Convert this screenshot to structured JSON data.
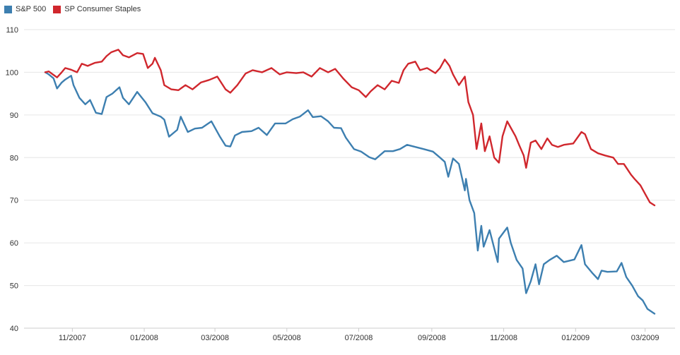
{
  "chart_data": {
    "type": "line",
    "title": "",
    "xlabel": "",
    "ylabel": "",
    "ylim": [
      40,
      110
    ],
    "yticks": [
      40,
      50,
      60,
      70,
      80,
      90,
      100,
      110
    ],
    "xticks": [
      "11/2007",
      "01/2008",
      "03/2008",
      "05/2008",
      "07/2008",
      "09/2008",
      "11/2008",
      "01/2009",
      "03/2009"
    ],
    "grid": "horizontal",
    "legend": "top-left",
    "x_start": "2007-10-09",
    "x_end": "2009-03-09",
    "series": [
      {
        "name": "S&P 500",
        "color": "#3d7fb0",
        "points": [
          [
            "2007-10-09",
            100
          ],
          [
            "2007-10-12",
            99.5
          ],
          [
            "2007-10-16",
            98.6
          ],
          [
            "2007-10-19",
            96.2
          ],
          [
            "2007-10-23",
            97.6
          ],
          [
            "2007-10-26",
            98.3
          ],
          [
            "2007-10-31",
            99.2
          ],
          [
            "2007-11-02",
            97.0
          ],
          [
            "2007-11-07",
            94.0
          ],
          [
            "2007-11-12",
            92.5
          ],
          [
            "2007-11-16",
            93.5
          ],
          [
            "2007-11-21",
            90.5
          ],
          [
            "2007-11-26",
            90.2
          ],
          [
            "2007-11-30",
            94.2
          ],
          [
            "2007-12-05",
            95.0
          ],
          [
            "2007-12-11",
            96.5
          ],
          [
            "2007-12-14",
            94.0
          ],
          [
            "2007-12-19",
            92.5
          ],
          [
            "2007-12-26",
            95.4
          ],
          [
            "2008-01-02",
            93.0
          ],
          [
            "2008-01-08",
            90.4
          ],
          [
            "2008-01-15",
            89.6
          ],
          [
            "2008-01-18",
            88.9
          ],
          [
            "2008-01-22",
            84.9
          ],
          [
            "2008-01-29",
            86.5
          ],
          [
            "2008-02-01",
            89.6
          ],
          [
            "2008-02-07",
            86.0
          ],
          [
            "2008-02-13",
            86.8
          ],
          [
            "2008-02-19",
            87.0
          ],
          [
            "2008-02-27",
            88.5
          ],
          [
            "2008-03-05",
            85.0
          ],
          [
            "2008-03-10",
            82.8
          ],
          [
            "2008-03-14",
            82.6
          ],
          [
            "2008-03-18",
            85.2
          ],
          [
            "2008-03-24",
            86.0
          ],
          [
            "2008-04-01",
            86.2
          ],
          [
            "2008-04-07",
            87.0
          ],
          [
            "2008-04-14",
            85.3
          ],
          [
            "2008-04-21",
            88.0
          ],
          [
            "2008-04-30",
            88.0
          ],
          [
            "2008-05-06",
            89.0
          ],
          [
            "2008-05-12",
            89.6
          ],
          [
            "2008-05-19",
            91.1
          ],
          [
            "2008-05-23",
            89.5
          ],
          [
            "2008-05-30",
            89.7
          ],
          [
            "2008-06-05",
            88.5
          ],
          [
            "2008-06-10",
            87.0
          ],
          [
            "2008-06-16",
            86.9
          ],
          [
            "2008-06-20",
            84.7
          ],
          [
            "2008-06-27",
            82.0
          ],
          [
            "2008-07-03",
            81.4
          ],
          [
            "2008-07-10",
            80.1
          ],
          [
            "2008-07-15",
            79.6
          ],
          [
            "2008-07-23",
            81.5
          ],
          [
            "2008-07-30",
            81.5
          ],
          [
            "2008-08-05",
            82.0
          ],
          [
            "2008-08-11",
            83.0
          ],
          [
            "2008-08-18",
            82.5
          ],
          [
            "2008-08-25",
            82.0
          ],
          [
            "2008-09-02",
            81.4
          ],
          [
            "2008-09-08",
            80.0
          ],
          [
            "2008-09-12",
            79.0
          ],
          [
            "2008-09-15",
            75.5
          ],
          [
            "2008-09-19",
            79.8
          ],
          [
            "2008-09-24",
            78.5
          ],
          [
            "2008-09-29",
            72.3
          ],
          [
            "2008-09-30",
            75.0
          ],
          [
            "2008-10-03",
            70.0
          ],
          [
            "2008-10-07",
            67.0
          ],
          [
            "2008-10-10",
            58.2
          ],
          [
            "2008-10-13",
            64.0
          ],
          [
            "2008-10-15",
            59.1
          ],
          [
            "2008-10-20",
            63.0
          ],
          [
            "2008-10-27",
            55.5
          ],
          [
            "2008-10-28",
            61.0
          ],
          [
            "2008-11-04",
            63.6
          ],
          [
            "2008-11-07",
            60.0
          ],
          [
            "2008-11-12",
            56.0
          ],
          [
            "2008-11-17",
            54.0
          ],
          [
            "2008-11-20",
            48.2
          ],
          [
            "2008-11-24",
            51.0
          ],
          [
            "2008-11-28",
            55.0
          ],
          [
            "2008-12-01",
            50.3
          ],
          [
            "2008-12-05",
            55.0
          ],
          [
            "2008-12-10",
            56.0
          ],
          [
            "2008-12-16",
            57.0
          ],
          [
            "2008-12-22",
            55.5
          ],
          [
            "2008-12-31",
            56.1
          ],
          [
            "2009-01-06",
            59.5
          ],
          [
            "2009-01-09",
            55.0
          ],
          [
            "2009-01-15",
            53.0
          ],
          [
            "2009-01-20",
            51.5
          ],
          [
            "2009-01-23",
            53.5
          ],
          [
            "2009-01-28",
            53.2
          ],
          [
            "2009-02-05",
            53.3
          ],
          [
            "2009-02-09",
            55.3
          ],
          [
            "2009-02-13",
            52.0
          ],
          [
            "2009-02-18",
            50.0
          ],
          [
            "2009-02-23",
            47.5
          ],
          [
            "2009-02-27",
            46.5
          ],
          [
            "2009-03-03",
            44.5
          ],
          [
            "2009-03-09",
            43.4
          ]
        ]
      },
      {
        "name": "SP Consumer Staples",
        "color": "#d0272d",
        "points": [
          [
            "2007-10-09",
            100
          ],
          [
            "2007-10-12",
            100.2
          ],
          [
            "2007-10-16",
            99.4
          ],
          [
            "2007-10-19",
            98.8
          ],
          [
            "2007-10-23",
            100.0
          ],
          [
            "2007-10-26",
            101.0
          ],
          [
            "2007-10-31",
            100.6
          ],
          [
            "2007-11-05",
            100.0
          ],
          [
            "2007-11-09",
            102.0
          ],
          [
            "2007-11-14",
            101.5
          ],
          [
            "2007-11-20",
            102.2
          ],
          [
            "2007-11-26",
            102.5
          ],
          [
            "2007-11-30",
            103.8
          ],
          [
            "2007-12-04",
            104.7
          ],
          [
            "2007-12-10",
            105.3
          ],
          [
            "2007-12-14",
            104.0
          ],
          [
            "2007-12-19",
            103.5
          ],
          [
            "2007-12-26",
            104.5
          ],
          [
            "2007-12-31",
            104.3
          ],
          [
            "2008-01-04",
            101.0
          ],
          [
            "2008-01-08",
            102.0
          ],
          [
            "2008-01-10",
            103.4
          ],
          [
            "2008-01-15",
            100.5
          ],
          [
            "2008-01-18",
            97.0
          ],
          [
            "2008-01-24",
            96.0
          ],
          [
            "2008-01-30",
            95.8
          ],
          [
            "2008-02-05",
            97.0
          ],
          [
            "2008-02-11",
            96.0
          ],
          [
            "2008-02-18",
            97.6
          ],
          [
            "2008-02-25",
            98.2
          ],
          [
            "2008-03-03",
            99.0
          ],
          [
            "2008-03-10",
            96.0
          ],
          [
            "2008-03-14",
            95.2
          ],
          [
            "2008-03-20",
            97.0
          ],
          [
            "2008-03-27",
            99.7
          ],
          [
            "2008-04-02",
            100.5
          ],
          [
            "2008-04-10",
            100.0
          ],
          [
            "2008-04-18",
            101.0
          ],
          [
            "2008-04-25",
            99.5
          ],
          [
            "2008-05-01",
            100.0
          ],
          [
            "2008-05-09",
            99.8
          ],
          [
            "2008-05-15",
            100.0
          ],
          [
            "2008-05-22",
            99.0
          ],
          [
            "2008-05-29",
            101.0
          ],
          [
            "2008-06-05",
            100.0
          ],
          [
            "2008-06-11",
            100.8
          ],
          [
            "2008-06-18",
            98.5
          ],
          [
            "2008-06-25",
            96.5
          ],
          [
            "2008-07-01",
            95.8
          ],
          [
            "2008-07-07",
            94.2
          ],
          [
            "2008-07-11",
            95.5
          ],
          [
            "2008-07-17",
            97.0
          ],
          [
            "2008-07-23",
            96.0
          ],
          [
            "2008-07-29",
            98.0
          ],
          [
            "2008-08-04",
            97.5
          ],
          [
            "2008-08-08",
            100.5
          ],
          [
            "2008-08-12",
            102.0
          ],
          [
            "2008-08-18",
            102.5
          ],
          [
            "2008-08-22",
            100.5
          ],
          [
            "2008-08-28",
            101.0
          ],
          [
            "2008-09-04",
            99.8
          ],
          [
            "2008-09-08",
            101.0
          ],
          [
            "2008-09-12",
            103.0
          ],
          [
            "2008-09-16",
            101.5
          ],
          [
            "2008-09-19",
            99.5
          ],
          [
            "2008-09-24",
            97.0
          ],
          [
            "2008-09-29",
            99.0
          ],
          [
            "2008-10-02",
            93.0
          ],
          [
            "2008-10-06",
            90.0
          ],
          [
            "2008-10-09",
            82.0
          ],
          [
            "2008-10-13",
            88.0
          ],
          [
            "2008-10-16",
            81.5
          ],
          [
            "2008-10-20",
            85.0
          ],
          [
            "2008-10-24",
            80.0
          ],
          [
            "2008-10-28",
            78.8
          ],
          [
            "2008-10-31",
            85.0
          ],
          [
            "2008-11-04",
            88.5
          ],
          [
            "2008-11-07",
            87.0
          ],
          [
            "2008-11-11",
            85.0
          ],
          [
            "2008-11-14",
            83.0
          ],
          [
            "2008-11-18",
            80.5
          ],
          [
            "2008-11-20",
            77.6
          ],
          [
            "2008-11-24",
            83.5
          ],
          [
            "2008-11-28",
            84.0
          ],
          [
            "2008-12-03",
            82.0
          ],
          [
            "2008-12-08",
            84.5
          ],
          [
            "2008-12-12",
            83.0
          ],
          [
            "2008-12-17",
            82.5
          ],
          [
            "2008-12-22",
            83.0
          ],
          [
            "2008-12-30",
            83.3
          ],
          [
            "2009-01-06",
            86.0
          ],
          [
            "2009-01-09",
            85.5
          ],
          [
            "2009-01-14",
            82.0
          ],
          [
            "2009-01-20",
            81.0
          ],
          [
            "2009-01-26",
            80.5
          ],
          [
            "2009-02-02",
            80.0
          ],
          [
            "2009-02-06",
            78.5
          ],
          [
            "2009-02-11",
            78.5
          ],
          [
            "2009-02-17",
            76.0
          ],
          [
            "2009-02-20",
            75.0
          ],
          [
            "2009-02-25",
            73.5
          ],
          [
            "2009-03-02",
            71.0
          ],
          [
            "2009-03-05",
            69.5
          ],
          [
            "2009-03-09",
            68.8
          ]
        ]
      }
    ]
  }
}
